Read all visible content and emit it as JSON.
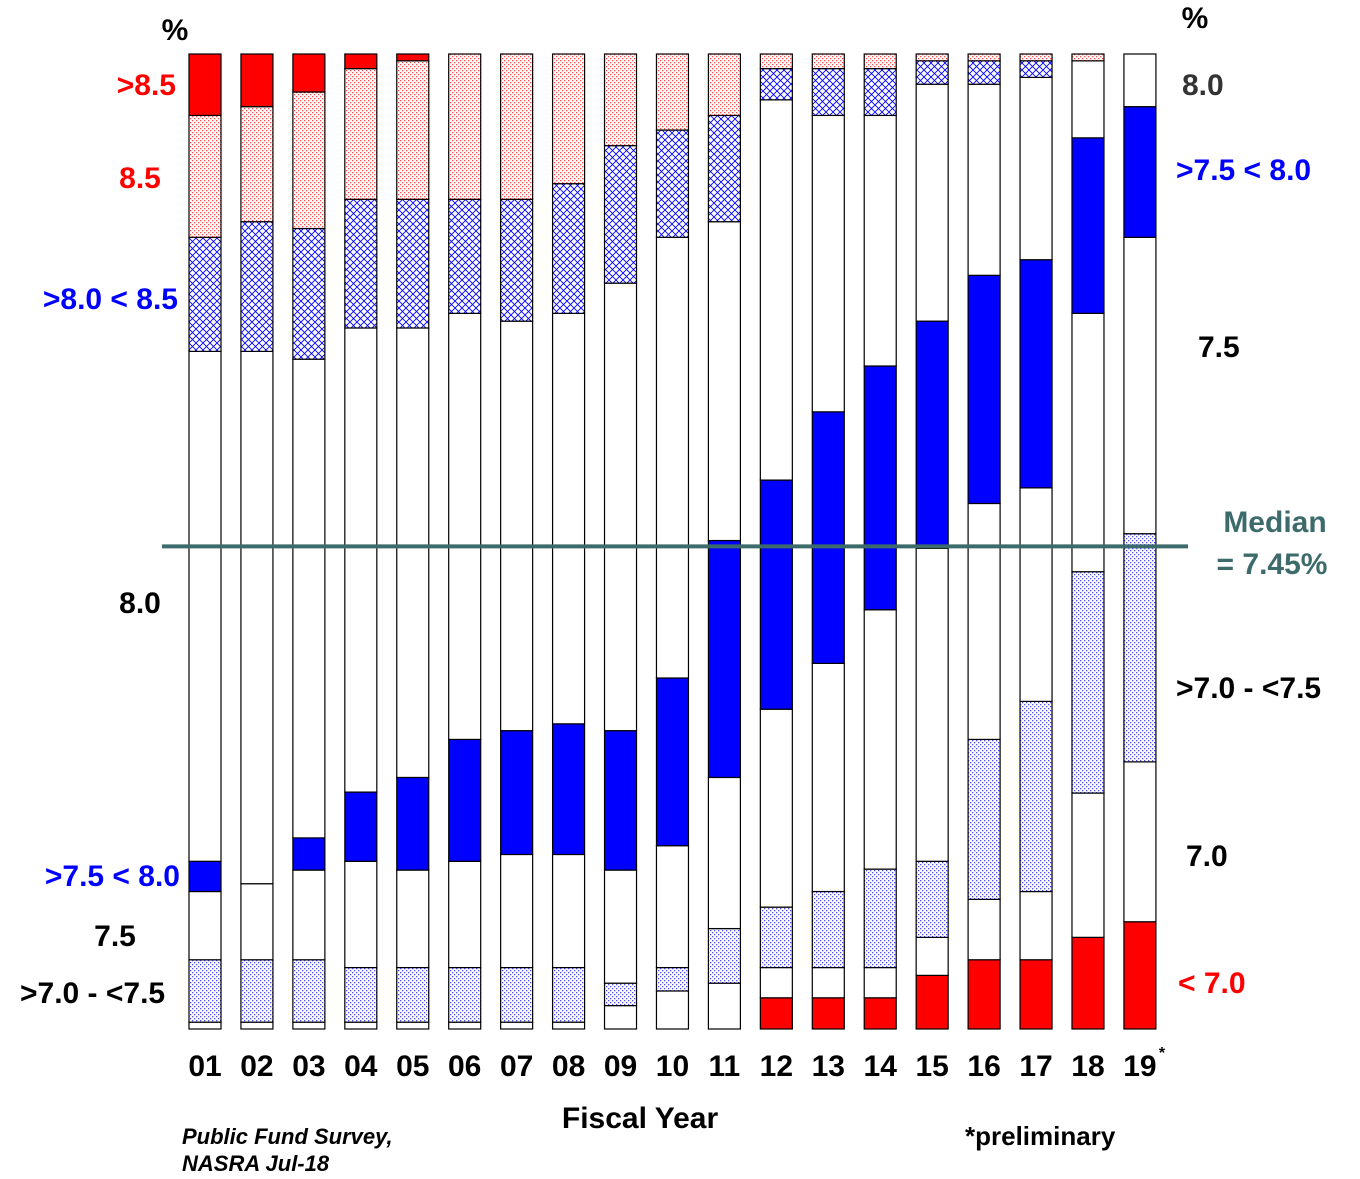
{
  "chart_data": {
    "type": "stacked_bar",
    "y_unit": "%",
    "x_label": "Fiscal Year",
    "categories": [
      "01",
      "02",
      "03",
      "04",
      "05",
      "06",
      "07",
      "08",
      "09",
      "10",
      "11",
      "12",
      "13",
      "14",
      "15",
      "16",
      "17",
      "18",
      "19"
    ],
    "marker": "*",
    "footnote": "*preliminary",
    "source": [
      "Public Fund Survey,",
      "NASRA Jul-18"
    ],
    "ylim": [
      0,
      100
    ],
    "median_line": {
      "label": "Median",
      "value_label": "= 7.45%",
      "at": 49.5,
      "color": "#3d6b6b"
    },
    "series": [
      {
        "name": "< 7.0",
        "color": "#ff0000",
        "pattern": "solid",
        "values": [
          0,
          0,
          0,
          0,
          0,
          0,
          0,
          0,
          0,
          0,
          0,
          3.2,
          3.2,
          3.2,
          5.5,
          7.1,
          7.1,
          9.4,
          11.0
        ]
      },
      {
        "name": "7.0",
        "color": "#ffffff",
        "pattern": "solid",
        "values": [
          0.7,
          0.7,
          0.7,
          0.7,
          0.7,
          0.7,
          0.7,
          0.7,
          2.4,
          3.9,
          4.7,
          3.1,
          3.1,
          3.1,
          3.9,
          6.2,
          7.0,
          14.8,
          16.4
        ]
      },
      {
        "name": ">7.0 - <7.5",
        "color": "#0000ff",
        "pattern": "dots",
        "values": [
          6.4,
          6.4,
          6.4,
          5.6,
          5.6,
          5.6,
          5.6,
          5.6,
          2.3,
          2.4,
          5.6,
          6.2,
          7.8,
          10.1,
          7.8,
          16.4,
          19.5,
          22.7,
          23.4
        ]
      },
      {
        "name": "7.5",
        "color": "#ffffff",
        "pattern": "solid",
        "values": [
          7.0,
          7.8,
          9.2,
          10.9,
          10.0,
          10.9,
          11.6,
          11.6,
          11.6,
          12.5,
          15.5,
          20.3,
          23.4,
          26.6,
          32.1,
          24.2,
          21.9,
          26.5,
          30.4
        ]
      },
      {
        "name": ">7.5 < 8.0",
        "color": "#0000ff",
        "pattern": "solid",
        "values": [
          3.1,
          0,
          3.3,
          7.1,
          9.5,
          12.5,
          12.7,
          13.4,
          14.3,
          17.2,
          24.3,
          23.5,
          25.8,
          25.0,
          23.3,
          23.4,
          23.4,
          18.0,
          13.4
        ]
      },
      {
        "name": "8.0",
        "color": "#ffffff",
        "pattern": "solid",
        "values": [
          52.3,
          54.6,
          49.1,
          47.6,
          46.1,
          43.7,
          42.0,
          42.1,
          45.9,
          45.2,
          32.7,
          39.0,
          30.4,
          25.7,
          24.3,
          19.6,
          18.7,
          7.9,
          5.4
        ]
      },
      {
        "name": ">8.0 < 8.5",
        "color": "#0000ff",
        "pattern": "crosshatch",
        "values": [
          11.7,
          13.3,
          13.4,
          13.2,
          13.2,
          11.7,
          12.5,
          13.3,
          14.1,
          11.0,
          10.9,
          3.2,
          4.8,
          4.8,
          2.4,
          2.4,
          1.7,
          0,
          0
        ]
      },
      {
        "name": "8.5",
        "color": "#ff0000",
        "pattern": "dots",
        "values": [
          12.5,
          11.8,
          14.0,
          13.4,
          14.2,
          14.9,
          14.9,
          13.3,
          9.4,
          7.8,
          6.3,
          1.5,
          1.5,
          1.5,
          0.7,
          0.7,
          0.7,
          0.7,
          0
        ]
      },
      {
        "name": ">8.5",
        "color": "#ff0000",
        "pattern": "solid",
        "values": [
          6.3,
          5.4,
          3.9,
          1.5,
          0.7,
          0,
          0,
          0,
          0,
          0,
          0,
          0,
          0,
          0,
          0,
          0,
          0,
          0,
          0
        ]
      }
    ]
  }
}
